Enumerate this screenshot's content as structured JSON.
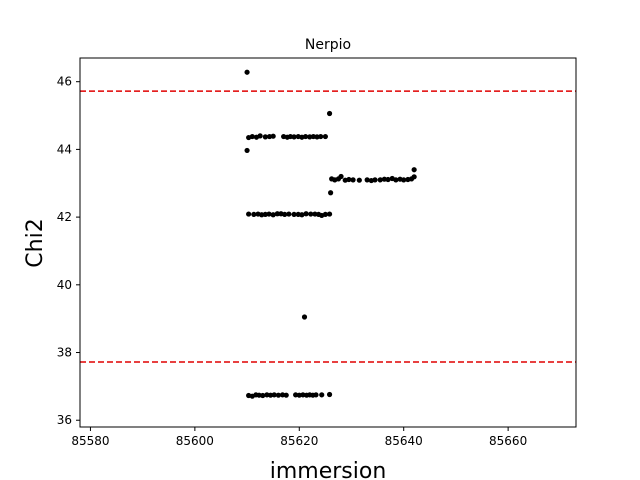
{
  "chart_data": {
    "type": "scatter",
    "title": "Nerpio",
    "xlabel": "immersion",
    "ylabel": "Chi2",
    "xlim": [
      85578,
      85673
    ],
    "ylim": [
      35.8,
      46.7
    ],
    "xticks": [
      85580,
      85600,
      85620,
      85640,
      85660
    ],
    "yticks": [
      36,
      38,
      40,
      42,
      44,
      46
    ],
    "grid": false,
    "point_color": "#000000",
    "hlines": [
      {
        "y": 45.72,
        "color": "#e00000",
        "style": "dashed"
      },
      {
        "y": 37.72,
        "color": "#e00000",
        "style": "dashed"
      }
    ],
    "series": [
      {
        "values": [
          [
            85610.0,
            46.28
          ],
          [
            85610.0,
            43.97
          ],
          [
            85625.8,
            45.06
          ],
          [
            85610.3,
            44.35
          ],
          [
            85611.0,
            44.38
          ],
          [
            85611.8,
            44.36
          ],
          [
            85612.5,
            44.4
          ],
          [
            85613.5,
            44.37
          ],
          [
            85614.3,
            44.38
          ],
          [
            85615.0,
            44.39
          ],
          [
            85617.0,
            44.38
          ],
          [
            85617.7,
            44.36
          ],
          [
            85618.3,
            44.38
          ],
          [
            85619.0,
            44.37
          ],
          [
            85619.8,
            44.38
          ],
          [
            85620.5,
            44.36
          ],
          [
            85621.2,
            44.38
          ],
          [
            85622.0,
            44.37
          ],
          [
            85622.7,
            44.38
          ],
          [
            85623.4,
            44.37
          ],
          [
            85624.1,
            44.38
          ],
          [
            85625.0,
            44.38
          ],
          [
            85610.3,
            42.09
          ],
          [
            85611.3,
            42.08
          ],
          [
            85612.1,
            42.09
          ],
          [
            85612.8,
            42.07
          ],
          [
            85613.5,
            42.08
          ],
          [
            85614.2,
            42.09
          ],
          [
            85615.0,
            42.07
          ],
          [
            85615.8,
            42.1
          ],
          [
            85616.5,
            42.1
          ],
          [
            85617.2,
            42.08
          ],
          [
            85618.0,
            42.09
          ],
          [
            85619.0,
            42.08
          ],
          [
            85619.8,
            42.08
          ],
          [
            85620.5,
            42.07
          ],
          [
            85621.3,
            42.1
          ],
          [
            85622.2,
            42.09
          ],
          [
            85623.0,
            42.09
          ],
          [
            85623.7,
            42.08
          ],
          [
            85624.3,
            42.05
          ],
          [
            85625.0,
            42.08
          ],
          [
            85625.8,
            42.09
          ],
          [
            85626.0,
            42.72
          ],
          [
            85626.2,
            43.13
          ],
          [
            85626.8,
            43.1
          ],
          [
            85627.5,
            43.13
          ],
          [
            85628.0,
            43.2
          ],
          [
            85628.8,
            43.09
          ],
          [
            85629.5,
            43.11
          ],
          [
            85630.3,
            43.1
          ],
          [
            85631.5,
            43.09
          ],
          [
            85633.0,
            43.1
          ],
          [
            85633.8,
            43.08
          ],
          [
            85634.5,
            43.1
          ],
          [
            85635.5,
            43.1
          ],
          [
            85636.3,
            43.12
          ],
          [
            85637.0,
            43.11
          ],
          [
            85637.8,
            43.14
          ],
          [
            85638.5,
            43.1
          ],
          [
            85639.3,
            43.12
          ],
          [
            85640.0,
            43.1
          ],
          [
            85640.8,
            43.11
          ],
          [
            85641.5,
            43.13
          ],
          [
            85642.0,
            43.19
          ],
          [
            85642.0,
            43.4
          ],
          [
            85621.0,
            39.05
          ],
          [
            85610.3,
            36.73
          ],
          [
            85611.0,
            36.71
          ],
          [
            85611.7,
            36.75
          ],
          [
            85612.3,
            36.74
          ],
          [
            85613.0,
            36.73
          ],
          [
            85613.8,
            36.75
          ],
          [
            85614.5,
            36.74
          ],
          [
            85615.2,
            36.75
          ],
          [
            85616.0,
            36.74
          ],
          [
            85616.8,
            36.75
          ],
          [
            85617.5,
            36.74
          ],
          [
            85619.3,
            36.75
          ],
          [
            85620.0,
            36.74
          ],
          [
            85620.7,
            36.75
          ],
          [
            85621.4,
            36.74
          ],
          [
            85622.0,
            36.75
          ],
          [
            85622.6,
            36.74
          ],
          [
            85623.2,
            36.75
          ],
          [
            85624.3,
            36.75
          ],
          [
            85625.8,
            36.76
          ]
        ]
      }
    ]
  }
}
